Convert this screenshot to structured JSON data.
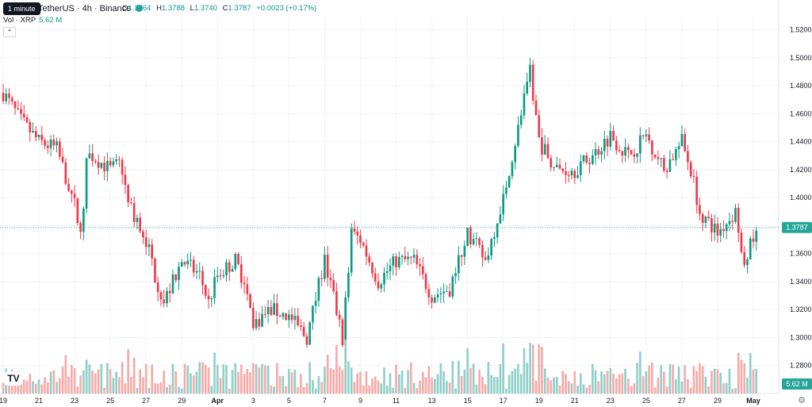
{
  "header": {
    "tooltip": "1 minute",
    "symbol": "TetherUS · 4h · Binance",
    "ohlc": [
      {
        "label": "O",
        "value": "1.3764"
      },
      {
        "label": "H",
        "value": "1.3788"
      },
      {
        "label": "L",
        "value": "1.3740"
      },
      {
        "label": "C",
        "value": "1.3787"
      },
      {
        "label": "",
        "value": "+0.0023 (+0.17%)"
      }
    ],
    "vol_label": "Vol · XRP",
    "vol_value": "5.62 M"
  },
  "colors": {
    "up": "#089981",
    "down": "#f23645",
    "vol_up": "#8ecfc9",
    "vol_down": "#f7a9a7",
    "price_tag": "#26a69a"
  },
  "icons": {
    "logo": "tradingview-logo-icon",
    "settings": "gear-icon",
    "collapse": "chevron-up-icon"
  },
  "chart_data": {
    "type": "candlestick",
    "ylim": [
      1.26,
      1.53
    ],
    "y_ticks": [
      "1.5200",
      "1.5000",
      "1.4800",
      "1.4600",
      "1.4400",
      "1.4200",
      "1.4000",
      "1.3800",
      "1.3600",
      "1.3400",
      "1.3200",
      "1.3000",
      "1.2800"
    ],
    "x_ticks": [
      {
        "label": "19",
        "day": 0
      },
      {
        "label": "21",
        "day": 2
      },
      {
        "label": "23",
        "day": 4
      },
      {
        "label": "25",
        "day": 6
      },
      {
        "label": "27",
        "day": 8
      },
      {
        "label": "29",
        "day": 10
      },
      {
        "label": "Apr",
        "day": 12
      },
      {
        "label": "3",
        "day": 14
      },
      {
        "label": "5",
        "day": 16
      },
      {
        "label": "7",
        "day": 18
      },
      {
        "label": "9",
        "day": 20
      },
      {
        "label": "11",
        "day": 22
      },
      {
        "label": "13",
        "day": 24
      },
      {
        "label": "15",
        "day": 26
      },
      {
        "label": "17",
        "day": 28
      },
      {
        "label": "19",
        "day": 30
      },
      {
        "label": "21",
        "day": 32
      },
      {
        "label": "23",
        "day": 34
      },
      {
        "label": "25",
        "day": 36
      },
      {
        "label": "27",
        "day": 38
      },
      {
        "label": "29",
        "day": 40
      },
      {
        "label": "May",
        "day": 42
      }
    ],
    "last_price": "1.3787",
    "volume_tag": "5.62 M",
    "anchors": [
      [
        0,
        1.475
      ],
      [
        1,
        1.455
      ],
      [
        2,
        1.44
      ],
      [
        3,
        1.435
      ],
      [
        4,
        1.395
      ],
      [
        4.4,
        1.37
      ],
      [
        4.7,
        1.43
      ],
      [
        5,
        1.43
      ],
      [
        6,
        1.42
      ],
      [
        6.6,
        1.425
      ],
      [
        7,
        1.395
      ],
      [
        8,
        1.37
      ],
      [
        8.5,
        1.345
      ],
      [
        9,
        1.325
      ],
      [
        10,
        1.355
      ],
      [
        11,
        1.345
      ],
      [
        11.5,
        1.325
      ],
      [
        12,
        1.345
      ],
      [
        13,
        1.355
      ],
      [
        13.5,
        1.34
      ],
      [
        14,
        1.31
      ],
      [
        15,
        1.32
      ],
      [
        16,
        1.315
      ],
      [
        17,
        1.3
      ],
      [
        18,
        1.355
      ],
      [
        19,
        1.3
      ],
      [
        19.5,
        1.375
      ],
      [
        20,
        1.37
      ],
      [
        20.5,
        1.355
      ],
      [
        21,
        1.34
      ],
      [
        22,
        1.355
      ],
      [
        23,
        1.355
      ],
      [
        24,
        1.33
      ],
      [
        25,
        1.335
      ],
      [
        26,
        1.375
      ],
      [
        27,
        1.355
      ],
      [
        28,
        1.4
      ],
      [
        28.5,
        1.43
      ],
      [
        29,
        1.46
      ],
      [
        29.5,
        1.49
      ],
      [
        30,
        1.44
      ],
      [
        31,
        1.42
      ],
      [
        32,
        1.42
      ],
      [
        33,
        1.43
      ],
      [
        34,
        1.445
      ],
      [
        35,
        1.43
      ],
      [
        36,
        1.445
      ],
      [
        37,
        1.42
      ],
      [
        37.5,
        1.43
      ],
      [
        38,
        1.44
      ],
      [
        38.5,
        1.42
      ],
      [
        39,
        1.39
      ],
      [
        40,
        1.375
      ],
      [
        41,
        1.39
      ],
      [
        41.5,
        1.355
      ],
      [
        42,
        1.37
      ],
      [
        42.3,
        1.378
      ]
    ],
    "candles_per_day": 6,
    "volume_range": [
      0.0,
      0.13
    ]
  }
}
